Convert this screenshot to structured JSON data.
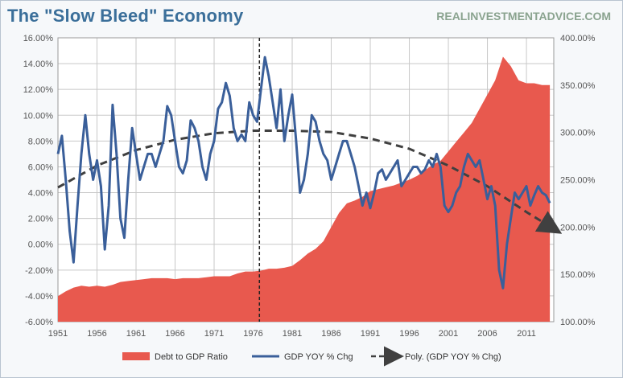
{
  "chart_data": {
    "type": "area",
    "title": "The \"Slow Bleed\" Economy",
    "source": "REALINVESTMENTADVICE.COM",
    "x_tick_labels": [
      "1951",
      "1956",
      "1961",
      "1966",
      "1971",
      "1976",
      "1981",
      "1986",
      "1991",
      "1996",
      "2001",
      "2006",
      "2011"
    ],
    "xlim": [
      1951,
      2014.5
    ],
    "y_left": {
      "ylim": [
        -6,
        16
      ],
      "tick_labels": [
        "16.00%",
        "14.00%",
        "12.00%",
        "10.00%",
        "8.00%",
        "6.00%",
        "4.00%",
        "2.00%",
        "0.00%",
        "-2.00%",
        "-4.00%",
        "-6.00%"
      ]
    },
    "y_right": {
      "ylim": [
        100,
        400
      ],
      "tick_labels": [
        "400.00%",
        "350.00%",
        "300.00%",
        "250.00%",
        "200.00%",
        "150.00%",
        "100.00%"
      ]
    },
    "grid": true,
    "legend_position": "bottom",
    "vertical_marker_x": 1976.8,
    "colors": {
      "debt": "#e8594e",
      "gdp": "#3a5f9a",
      "trend": "#404040",
      "grid": "#c8c8c8"
    },
    "series": [
      {
        "name": "Debt to GDP Ratio",
        "axis": "right",
        "kind": "area",
        "points": [
          [
            1951,
            127
          ],
          [
            1952,
            132
          ],
          [
            1953,
            136
          ],
          [
            1954,
            138
          ],
          [
            1955,
            137
          ],
          [
            1956,
            138
          ],
          [
            1957,
            137
          ],
          [
            1958,
            139
          ],
          [
            1959,
            142
          ],
          [
            1960,
            143
          ],
          [
            1961,
            144
          ],
          [
            1962,
            145
          ],
          [
            1963,
            146
          ],
          [
            1964,
            146
          ],
          [
            1965,
            146
          ],
          [
            1966,
            145
          ],
          [
            1967,
            146
          ],
          [
            1968,
            146
          ],
          [
            1969,
            146
          ],
          [
            1970,
            147
          ],
          [
            1971,
            148
          ],
          [
            1972,
            148
          ],
          [
            1973,
            148
          ],
          [
            1974,
            151
          ],
          [
            1975,
            153
          ],
          [
            1976,
            153
          ],
          [
            1977,
            154
          ],
          [
            1978,
            156
          ],
          [
            1979,
            156
          ],
          [
            1980,
            157
          ],
          [
            1981,
            159
          ],
          [
            1982,
            165
          ],
          [
            1983,
            172
          ],
          [
            1984,
            177
          ],
          [
            1985,
            185
          ],
          [
            1986,
            200
          ],
          [
            1987,
            215
          ],
          [
            1988,
            225
          ],
          [
            1989,
            228
          ],
          [
            1990,
            232
          ],
          [
            1991,
            238
          ],
          [
            1992,
            240
          ],
          [
            1993,
            242
          ],
          [
            1994,
            244
          ],
          [
            1995,
            247
          ],
          [
            1996,
            250
          ],
          [
            1997,
            254
          ],
          [
            1998,
            260
          ],
          [
            1999,
            266
          ],
          [
            2000,
            270
          ],
          [
            2001,
            280
          ],
          [
            2002,
            290
          ],
          [
            2003,
            300
          ],
          [
            2004,
            310
          ],
          [
            2005,
            325
          ],
          [
            2006,
            340
          ],
          [
            2007,
            355
          ],
          [
            2008,
            380
          ],
          [
            2009,
            370
          ],
          [
            2010,
            355
          ],
          [
            2011,
            352
          ],
          [
            2012,
            352
          ],
          [
            2013,
            350
          ],
          [
            2014,
            350
          ]
        ]
      },
      {
        "name": "GDP YOY % Chg",
        "axis": "left",
        "kind": "line",
        "points": [
          [
            1951,
            7
          ],
          [
            1951.5,
            8.4
          ],
          [
            1952,
            5
          ],
          [
            1952.5,
            1
          ],
          [
            1953,
            -1.4
          ],
          [
            1953.5,
            3
          ],
          [
            1954,
            7
          ],
          [
            1954.5,
            10
          ],
          [
            1955,
            7
          ],
          [
            1955.5,
            5
          ],
          [
            1956,
            6.5
          ],
          [
            1956.5,
            4.5
          ],
          [
            1957,
            -0.4
          ],
          [
            1957.5,
            3
          ],
          [
            1958,
            10.8
          ],
          [
            1958.5,
            7
          ],
          [
            1959,
            2
          ],
          [
            1959.5,
            0.5
          ],
          [
            1960,
            5
          ],
          [
            1960.5,
            9
          ],
          [
            1961,
            7
          ],
          [
            1961.5,
            5
          ],
          [
            1962,
            6
          ],
          [
            1962.5,
            7
          ],
          [
            1963,
            7
          ],
          [
            1963.5,
            6
          ],
          [
            1964,
            7
          ],
          [
            1964.5,
            8
          ],
          [
            1965,
            10.7
          ],
          [
            1965.5,
            10
          ],
          [
            1966,
            8
          ],
          [
            1966.5,
            6
          ],
          [
            1967,
            5.5
          ],
          [
            1967.5,
            6.5
          ],
          [
            1968,
            9.6
          ],
          [
            1968.5,
            9
          ],
          [
            1969,
            8
          ],
          [
            1969.5,
            6
          ],
          [
            1970,
            5
          ],
          [
            1970.5,
            7
          ],
          [
            1971,
            8
          ],
          [
            1971.5,
            10.5
          ],
          [
            1972,
            11
          ],
          [
            1972.5,
            12.5
          ],
          [
            1973,
            11.5
          ],
          [
            1973.5,
            9
          ],
          [
            1974,
            8
          ],
          [
            1974.5,
            8.5
          ],
          [
            1975,
            8
          ],
          [
            1975.5,
            11
          ],
          [
            1976,
            10
          ],
          [
            1976.5,
            9.5
          ],
          [
            1977,
            12
          ],
          [
            1977.5,
            14.5
          ],
          [
            1978,
            13
          ],
          [
            1978.5,
            11
          ],
          [
            1979,
            9
          ],
          [
            1979.5,
            12
          ],
          [
            1980,
            8
          ],
          [
            1980.5,
            10
          ],
          [
            1981,
            11.6
          ],
          [
            1981.5,
            8
          ],
          [
            1982,
            4
          ],
          [
            1982.5,
            5
          ],
          [
            1983,
            7
          ],
          [
            1983.5,
            10
          ],
          [
            1984,
            9.5
          ],
          [
            1984.5,
            8
          ],
          [
            1985,
            7
          ],
          [
            1985.5,
            6.5
          ],
          [
            1986,
            5
          ],
          [
            1986.5,
            6
          ],
          [
            1987,
            7
          ],
          [
            1987.5,
            8
          ],
          [
            1988,
            8
          ],
          [
            1988.5,
            7
          ],
          [
            1989,
            6
          ],
          [
            1989.5,
            4.5
          ],
          [
            1990,
            3
          ],
          [
            1990.5,
            4
          ],
          [
            1991,
            2.8
          ],
          [
            1991.5,
            4
          ],
          [
            1992,
            5.5
          ],
          [
            1992.5,
            5.8
          ],
          [
            1993,
            5
          ],
          [
            1993.5,
            5.5
          ],
          [
            1994,
            6
          ],
          [
            1994.5,
            6.5
          ],
          [
            1995,
            4.5
          ],
          [
            1995.5,
            5
          ],
          [
            1996,
            5.5
          ],
          [
            1996.5,
            6
          ],
          [
            1997,
            6
          ],
          [
            1997.5,
            5.5
          ],
          [
            1998,
            5.8
          ],
          [
            1998.5,
            6.5
          ],
          [
            1999,
            6
          ],
          [
            1999.5,
            7
          ],
          [
            2000,
            6
          ],
          [
            2000.5,
            3
          ],
          [
            2001,
            2.5
          ],
          [
            2001.5,
            3
          ],
          [
            2002,
            4
          ],
          [
            2002.5,
            4.5
          ],
          [
            2003,
            6
          ],
          [
            2003.5,
            7
          ],
          [
            2004,
            6.5
          ],
          [
            2004.5,
            6
          ],
          [
            2005,
            6.5
          ],
          [
            2005.5,
            5
          ],
          [
            2006,
            3.5
          ],
          [
            2006.5,
            4.5
          ],
          [
            2007,
            3
          ],
          [
            2007.5,
            -2
          ],
          [
            2008,
            -3.4
          ],
          [
            2008.5,
            0
          ],
          [
            2009,
            2
          ],
          [
            2009.5,
            4
          ],
          [
            2010,
            3.5
          ],
          [
            2010.5,
            4
          ],
          [
            2011,
            4.5
          ],
          [
            2011.5,
            3
          ],
          [
            2012,
            3.8
          ],
          [
            2012.5,
            4.5
          ],
          [
            2013,
            4
          ],
          [
            2013.5,
            3.8
          ],
          [
            2014,
            3.2
          ]
        ]
      },
      {
        "name": "Poly. (GDP YOY % Chg)",
        "axis": "left",
        "kind": "dashed-trend",
        "points": [
          [
            1951,
            4.4
          ],
          [
            1956,
            6.1
          ],
          [
            1961,
            7.3
          ],
          [
            1966,
            8.1
          ],
          [
            1971,
            8.6
          ],
          [
            1976,
            8.8
          ],
          [
            1981,
            8.8
          ],
          [
            1986,
            8.7
          ],
          [
            1991,
            8.2
          ],
          [
            1996,
            7.4
          ],
          [
            2001,
            6.1
          ],
          [
            2006,
            4.5
          ],
          [
            2011,
            2.5
          ],
          [
            2014.5,
            1.2
          ]
        ]
      }
    ]
  }
}
